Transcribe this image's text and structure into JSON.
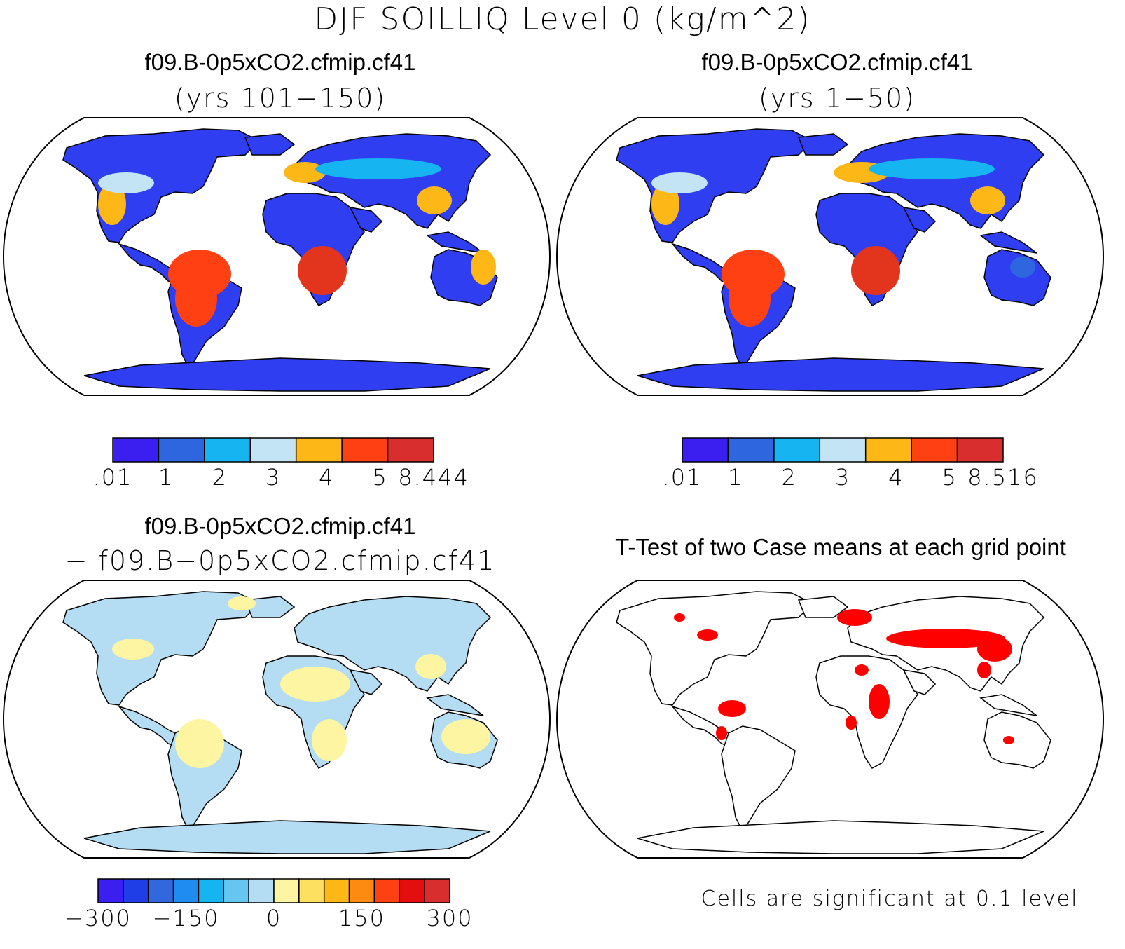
{
  "main_title": "DJF SOILLIQ Level 0 (kg/m^2)",
  "panels": [
    {
      "id": "case1",
      "title": "f09.B-0p5xCO2.cfmip.cf41",
      "subtitle": "(yrs 101−150)",
      "colorbar": {
        "colors": [
          "#3b1ef0",
          "#2e66e0",
          "#17b4f2",
          "#c2e4f5",
          "#fdb716",
          "#ff4012",
          "#d92e2e"
        ],
        "tick_labels": [
          ".01",
          "1",
          "2",
          "3",
          "4",
          "5",
          "8.444"
        ]
      }
    },
    {
      "id": "case2",
      "title": "f09.B-0p5xCO2.cfmip.cf41",
      "subtitle": "(yrs 1−50)",
      "colorbar": {
        "colors": [
          "#3b1ef0",
          "#2e66e0",
          "#17b4f2",
          "#c2e4f5",
          "#fdb716",
          "#ff4012",
          "#d92e2e"
        ],
        "tick_labels": [
          ".01",
          "1",
          "2",
          "3",
          "4",
          "5",
          "8.516"
        ]
      }
    },
    {
      "id": "difference",
      "title": "f09.B-0p5xCO2.cfmip.cf41",
      "subtitle": "− f09.B−0p5xCO2.cfmip.cf41",
      "colorbar": {
        "colors": [
          "#3b1ef0",
          "#1f3ee8",
          "#3268de",
          "#1e8cf0",
          "#17b4f2",
          "#66c6f0",
          "#b4dcf2",
          "#fdf5a2",
          "#fde060",
          "#fdb716",
          "#ff8a10",
          "#ff4012",
          "#e50e0e",
          "#d92e2e"
        ],
        "tick_labels": [
          "−300",
          "−150",
          "0",
          "150",
          "300"
        ]
      }
    },
    {
      "id": "ttest",
      "title": "T-Test of two Case means at each grid point",
      "note": "Cells are significant at 0.1 level",
      "significant_color": "#ff0000"
    }
  ]
}
